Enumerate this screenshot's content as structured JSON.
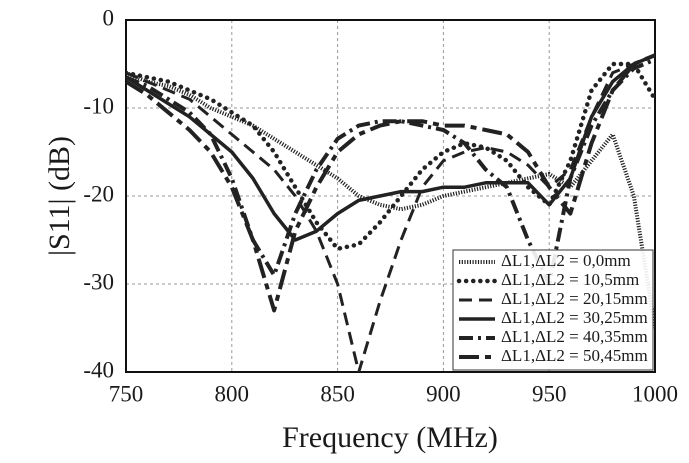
{
  "chart_data": {
    "type": "line",
    "xlabel": "Frequency (MHz)",
    "ylabel": "|S11| (dB)",
    "x": [
      750,
      760,
      770,
      780,
      790,
      800,
      810,
      820,
      830,
      840,
      850,
      860,
      870,
      880,
      890,
      900,
      910,
      920,
      930,
      940,
      950,
      960,
      970,
      980,
      990,
      1000
    ],
    "series": [
      {
        "name": "ΔL1,ΔL2 = 0,0mm",
        "color": "#222222",
        "values": [
          -6,
          -7,
          -7.5,
          -8.5,
          -10,
          -11,
          -12,
          -13.5,
          -15,
          -16.5,
          -18,
          -20,
          -21,
          -21.5,
          -21,
          -20,
          -19.5,
          -19,
          -18.5,
          -18,
          -17.5,
          -19,
          -16,
          -13,
          -20,
          -35
        ]
      },
      {
        "name": "ΔL1,ΔL2 = 10,5mm",
        "color": "#222222",
        "values": [
          -6,
          -6.5,
          -7,
          -8,
          -9,
          -10.5,
          -12,
          -15,
          -19,
          -23,
          -26,
          -25.5,
          -23,
          -20,
          -17,
          -15,
          -14,
          -14.5,
          -16,
          -19,
          -21,
          -16,
          -8,
          -5,
          -5,
          -9
        ]
      },
      {
        "name": "ΔL1,ΔL2 = 20,15mm",
        "color": "#222222",
        "values": [
          -6,
          -7,
          -8,
          -9,
          -11,
          -13,
          -15,
          -17,
          -20,
          -24,
          -30,
          -40,
          -32,
          -25,
          -19,
          -16,
          -15,
          -14.5,
          -15,
          -16.5,
          -19,
          -17,
          -11,
          -6,
          -5,
          -4
        ]
      },
      {
        "name": "ΔL1,ΔL2 = 30,25mm",
        "color": "#222222",
        "values": [
          -6.5,
          -8,
          -9.5,
          -11,
          -13,
          -15,
          -18,
          -22,
          -25,
          -24,
          -22,
          -20.5,
          -20,
          -19.5,
          -19.5,
          -19,
          -19,
          -18.5,
          -18.5,
          -18.5,
          -21,
          -18,
          -11,
          -7,
          -5,
          -4
        ]
      },
      {
        "name": "ΔL1,ΔL2 = 40,35mm",
        "color": "#222222",
        "values": [
          -6.5,
          -7.5,
          -9,
          -10.5,
          -13,
          -18,
          -25,
          -29,
          -22,
          -17,
          -13.5,
          -12,
          -11.5,
          -11.5,
          -12,
          -12.5,
          -14,
          -17,
          -19,
          -25,
          -30,
          -18,
          -12,
          -8,
          -5.5,
          -4.5
        ]
      },
      {
        "name": "ΔL1,ΔL2 = 50,45mm",
        "color": "#222222",
        "values": [
          -7,
          -8.5,
          -10.5,
          -12.5,
          -15,
          -19,
          -25,
          -33,
          -24,
          -19,
          -15,
          -13,
          -12,
          -11.5,
          -11.5,
          -12,
          -12,
          -12.5,
          -13,
          -15,
          -19,
          -22,
          -14,
          -8,
          -5,
          -4
        ]
      }
    ],
    "xlim": [
      750,
      1000
    ],
    "xticks": [
      750,
      800,
      850,
      900,
      950,
      1000
    ],
    "ylim": [
      -40,
      0
    ],
    "yticks": [
      0,
      -10,
      -20,
      -30,
      -40
    ],
    "grid": true,
    "legend": "lower right"
  }
}
